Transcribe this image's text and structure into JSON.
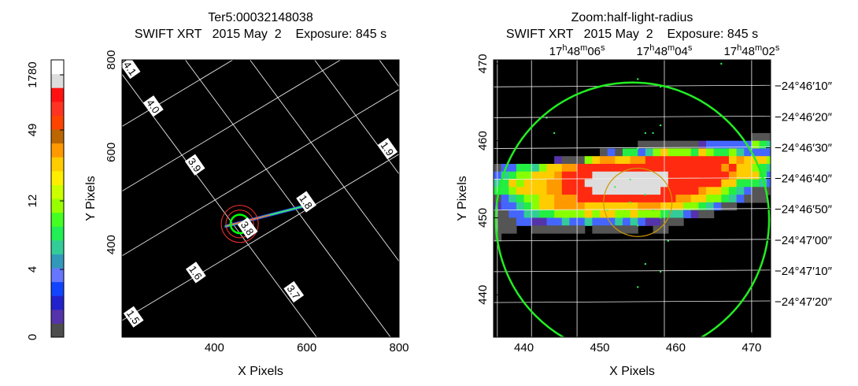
{
  "chart_data": [
    {
      "type": "heatmap",
      "title": "Ter5:00032148038",
      "subtitle": "SWIFT XRT   2015 May  2    Exposure: 845 s",
      "xlabel": "X Pixels",
      "ylabel": "Y Pixels",
      "xlim": [
        200,
        800
      ],
      "ylim": [
        200,
        800
      ],
      "x_ticks": [
        400,
        600,
        800
      ],
      "y_ticks": [
        400,
        600,
        800
      ],
      "x_tick_labels": [
        "400",
        "600",
        "800"
      ],
      "y_tick_labels": [
        "400",
        "600",
        "800"
      ],
      "colorbar": {
        "tick_values": [
          0,
          4,
          12,
          49,
          1780
        ],
        "tick_labels": [
          "0",
          "4",
          "12",
          "49",
          "1780"
        ],
        "colors": [
          "#4d4d4d",
          "#5533aa",
          "#2222cc",
          "#1144ff",
          "#6677ff",
          "#3399bb",
          "#33cc99",
          "#22ee55",
          "#44ff22",
          "#99ff00",
          "#ccff00",
          "#ffee00",
          "#ffcc00",
          "#ff9900",
          "#bb6600",
          "#ff4400",
          "#ff3322",
          "#ff1111",
          "#dddddd",
          "#ffffff"
        ]
      },
      "grid_labels": [
        {
          "text": "4.1",
          "x": 218,
          "y": 782
        },
        {
          "text": "4.0",
          "x": 268,
          "y": 700
        },
        {
          "text": "3.9",
          "x": 358,
          "y": 573
        },
        {
          "text": "3.8",
          "x": 472,
          "y": 436
        },
        {
          "text": "3.7",
          "x": 572,
          "y": 298
        },
        {
          "text": "1.9",
          "x": 775,
          "y": 608
        },
        {
          "text": "1.8",
          "x": 599,
          "y": 493
        },
        {
          "text": "1.6",
          "x": 360,
          "y": 340
        },
        {
          "text": "1.5",
          "x": 225,
          "y": 244
        }
      ],
      "source_streak": {
        "x": [
          425,
          600
        ],
        "y": [
          440,
          485
        ]
      },
      "regions": [
        {
          "shape": "circle",
          "x": 455,
          "y": 445,
          "r": 20,
          "color": "#00ff00"
        },
        {
          "shape": "circle",
          "x": 455,
          "y": 445,
          "r": 30,
          "color": "#ff3333"
        },
        {
          "shape": "circle",
          "x": 455,
          "y": 445,
          "r": 40,
          "color": "#ff3333"
        }
      ]
    },
    {
      "type": "heatmap",
      "title": "Zoom:half-light-radius",
      "subtitle": "SWIFT XRT   2015 May  2    Exposure: 845 s",
      "xlabel": "X Pixels",
      "ylabel": "Y Pixels",
      "xlim": [
        436,
        472.5
      ],
      "ylim": [
        434.5,
        470.5
      ],
      "x_ticks": [
        440,
        450,
        460,
        470
      ],
      "y_ticks": [
        440,
        450,
        460,
        470
      ],
      "x_tick_labels": [
        "440",
        "450",
        "460",
        "470"
      ],
      "y_tick_labels": [
        "440",
        "450",
        "460",
        "470"
      ],
      "ra_ticks": [
        {
          "h": "17",
          "m": "48",
          "s": "06",
          "x": 447
        },
        {
          "h": "17",
          "m": "48",
          "s": "04",
          "x": 458.5
        },
        {
          "h": "17",
          "m": "48",
          "s": "02",
          "x": 470
        }
      ],
      "dec_ticks": [
        {
          "text": "−24°46′10″",
          "y": 467.1
        },
        {
          "text": "−24°46′20″",
          "y": 463.1
        },
        {
          "text": "−24°46′30″",
          "y": 459.1
        },
        {
          "text": "−24°46′40″",
          "y": 455.1
        },
        {
          "text": "−24°46′50″",
          "y": 451.1
        },
        {
          "text": "−24°47′00″",
          "y": 447.1
        },
        {
          "text": "−24°47′10″",
          "y": 443.1
        },
        {
          "text": "−24°47′20″",
          "y": 439.1
        }
      ],
      "extraction_circle": {
        "x": 454.3,
        "y": 449.8,
        "r": 18,
        "color": "#22ee22"
      },
      "half_light_circle": {
        "x": 455,
        "y": 452,
        "r": 4.5,
        "color": "#cc9900"
      }
    }
  ]
}
